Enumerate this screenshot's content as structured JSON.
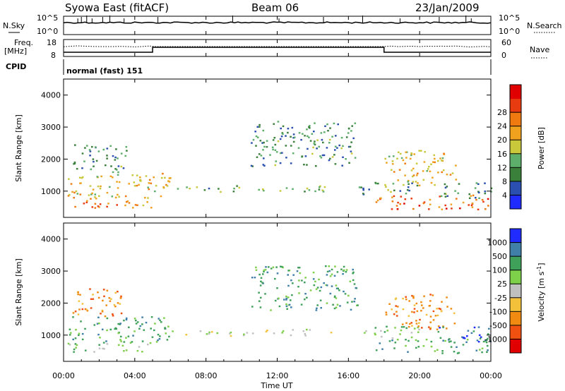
{
  "header": {
    "station": "Syowa East (fitACF)",
    "beam": "Beam 06",
    "date": "23/Jan/2009"
  },
  "nsky_panel": {
    "left_label": "N.Sky",
    "right_label": "N.Search",
    "ticks_left": [
      "10^5",
      "10^0"
    ],
    "ticks_right": [
      "10^5",
      "10^0"
    ]
  },
  "freq_panel": {
    "left_label_1": "Freq.",
    "left_label_2": "[MHz]",
    "right_label": "Nave",
    "ticks_left": [
      "18",
      "8"
    ],
    "ticks_right": [
      "60",
      "0"
    ]
  },
  "cpid": {
    "label": "CPID",
    "mode": "normal (fast) 151"
  },
  "time_axis": {
    "label": "Time UT",
    "ticks": [
      "00:00",
      "04:00",
      "08:00",
      "12:00",
      "16:00",
      "20:00",
      "00:00"
    ]
  },
  "chart_data": [
    {
      "type": "heatmap",
      "name": "power",
      "ylabel": "Slant Range [km]",
      "yticks": [
        "1000",
        "2000",
        "3000",
        "4000"
      ],
      "ylim": [
        180,
        4500
      ],
      "xlim_hours": [
        0,
        24
      ],
      "colorbar": {
        "label": "Power [dB]",
        "ticks": [
          "4",
          "8",
          "12",
          "16",
          "20",
          "24",
          "28"
        ],
        "colors": [
          "#1f2bff",
          "#2b4fb0",
          "#3a7f3a",
          "#5cae6a",
          "#c8c83a",
          "#f0a21e",
          "#f07a10",
          "#e83b10",
          "#e00000"
        ]
      },
      "regions": [
        {
          "t0": 0.0,
          "t1": 5.0,
          "r0": 500,
          "r1": 800,
          "level": 20
        },
        {
          "t0": 0.2,
          "t1": 6.0,
          "r0": 800,
          "r1": 1600,
          "level": 16
        },
        {
          "t0": 0.5,
          "t1": 3.5,
          "r0": 1600,
          "r1": 2500,
          "level": 8
        },
        {
          "t0": 6.0,
          "t1": 9.0,
          "r0": 1000,
          "r1": 1150,
          "level": 8
        },
        {
          "t0": 9.0,
          "t1": 15.0,
          "r0": 1000,
          "r1": 1200,
          "level": 10
        },
        {
          "t0": 10.5,
          "t1": 16.5,
          "r0": 1800,
          "r1": 3200,
          "level": 8
        },
        {
          "t0": 16.5,
          "t1": 20.0,
          "r0": 900,
          "r1": 1300,
          "level": 8
        },
        {
          "t0": 17.5,
          "t1": 24.0,
          "r0": 450,
          "r1": 900,
          "level": 22
        },
        {
          "t0": 18.0,
          "t1": 22.0,
          "r0": 1200,
          "r1": 2300,
          "level": 16
        },
        {
          "t0": 21.0,
          "t1": 24.0,
          "r0": 800,
          "r1": 1300,
          "level": 8
        }
      ]
    },
    {
      "type": "heatmap",
      "name": "velocity",
      "ylabel": "Slant Range [km]",
      "yticks": [
        "1000",
        "2000",
        "3000",
        "4000"
      ],
      "ylim": [
        180,
        4500
      ],
      "xlim_hours": [
        0,
        24
      ],
      "colorbar": {
        "label": "Velocity [m s^-1]",
        "ticks": [
          "-1000",
          "-500",
          "-100",
          "-25",
          "25",
          "100",
          "500",
          "1000"
        ],
        "colors": [
          "#e00000",
          "#f05010",
          "#f08a10",
          "#f4c23a",
          "#c0c0c0",
          "#7ed04a",
          "#3fa05a",
          "#3f7fa8",
          "#1f2bff"
        ]
      },
      "regions": [
        {
          "t0": 0.0,
          "t1": 5.0,
          "r0": 500,
          "r1": 800,
          "level": 5
        },
        {
          "t0": 0.2,
          "t1": 6.0,
          "r0": 800,
          "r1": 1600,
          "level": 6
        },
        {
          "t0": 0.5,
          "t1": 3.5,
          "r0": 1600,
          "r1": 2500,
          "level": 2
        },
        {
          "t0": 6.0,
          "t1": 9.0,
          "r0": 1000,
          "r1": 1150,
          "level": 4
        },
        {
          "t0": 9.0,
          "t1": 15.0,
          "r0": 1000,
          "r1": 1200,
          "level": 4
        },
        {
          "t0": 10.5,
          "t1": 16.5,
          "r0": 1800,
          "r1": 3200,
          "level": 6
        },
        {
          "t0": 16.5,
          "t1": 20.0,
          "r0": 900,
          "r1": 1300,
          "level": 5
        },
        {
          "t0": 17.5,
          "t1": 24.0,
          "r0": 450,
          "r1": 900,
          "level": 6
        },
        {
          "t0": 18.0,
          "t1": 22.0,
          "r0": 1200,
          "r1": 2300,
          "level": 2
        },
        {
          "t0": 21.0,
          "t1": 24.0,
          "r0": 800,
          "r1": 1300,
          "level": 7
        }
      ]
    }
  ]
}
